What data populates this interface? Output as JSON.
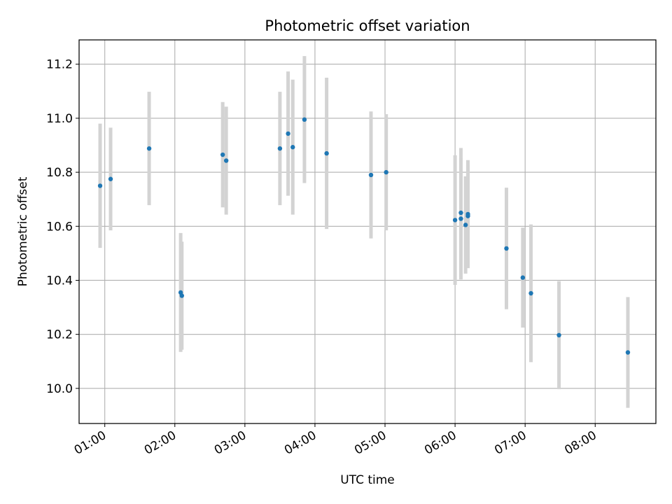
{
  "chart_data": {
    "type": "scatter",
    "title": "Photometric offset variation",
    "xlabel": "UTC time",
    "ylabel": "Photometric offset",
    "x_ticks": [
      "01:00",
      "02:00",
      "03:00",
      "04:00",
      "05:00",
      "06:00",
      "07:00",
      "08:00"
    ],
    "y_ticks": [
      "10.0",
      "10.2",
      "10.4",
      "10.6",
      "10.8",
      "11.0",
      "11.2"
    ],
    "xlim": [
      "00:38",
      "08:52"
    ],
    "ylim": [
      9.87,
      11.29
    ],
    "grid": true,
    "colors": {
      "points": "#1f77b4",
      "errorbars": "#d3d3d3",
      "grid": "#b0b0b0"
    },
    "series": [
      {
        "points": [
          {
            "x": "00:56",
            "y": 10.75,
            "err": 0.23
          },
          {
            "x": "01:05",
            "y": 10.775,
            "err": 0.19
          },
          {
            "x": "01:38",
            "y": 10.888,
            "err": 0.21
          },
          {
            "x": "02:05",
            "y": 10.355,
            "err": 0.22
          },
          {
            "x": "02:06",
            "y": 10.343,
            "err": 0.2
          },
          {
            "x": "02:41",
            "y": 10.865,
            "err": 0.195
          },
          {
            "x": "02:44",
            "y": 10.843,
            "err": 0.2
          },
          {
            "x": "03:30",
            "y": 10.888,
            "err": 0.21
          },
          {
            "x": "03:37",
            "y": 10.943,
            "err": 0.23
          },
          {
            "x": "03:41",
            "y": 10.893,
            "err": 0.25
          },
          {
            "x": "03:51",
            "y": 10.995,
            "err": 0.235
          },
          {
            "x": "04:10",
            "y": 10.87,
            "err": 0.28
          },
          {
            "x": "04:48",
            "y": 10.79,
            "err": 0.235
          },
          {
            "x": "05:01",
            "y": 10.8,
            "err": 0.215
          },
          {
            "x": "06:00",
            "y": 10.623,
            "err": 0.24
          },
          {
            "x": "06:05",
            "y": 10.628,
            "err": 0.225
          },
          {
            "x": "06:05",
            "y": 10.65,
            "err": 0.24
          },
          {
            "x": "06:09",
            "y": 10.605,
            "err": 0.18
          },
          {
            "x": "06:11",
            "y": 10.645,
            "err": 0.2
          },
          {
            "x": "06:11",
            "y": 10.638,
            "err": 0.19
          },
          {
            "x": "06:44",
            "y": 10.518,
            "err": 0.225
          },
          {
            "x": "06:58",
            "y": 10.41,
            "err": 0.185
          },
          {
            "x": "07:05",
            "y": 10.352,
            "err": 0.255
          },
          {
            "x": "07:29",
            "y": 10.197,
            "err": 0.2
          },
          {
            "x": "08:28",
            "y": 10.133,
            "err": 0.205
          }
        ]
      }
    ]
  }
}
